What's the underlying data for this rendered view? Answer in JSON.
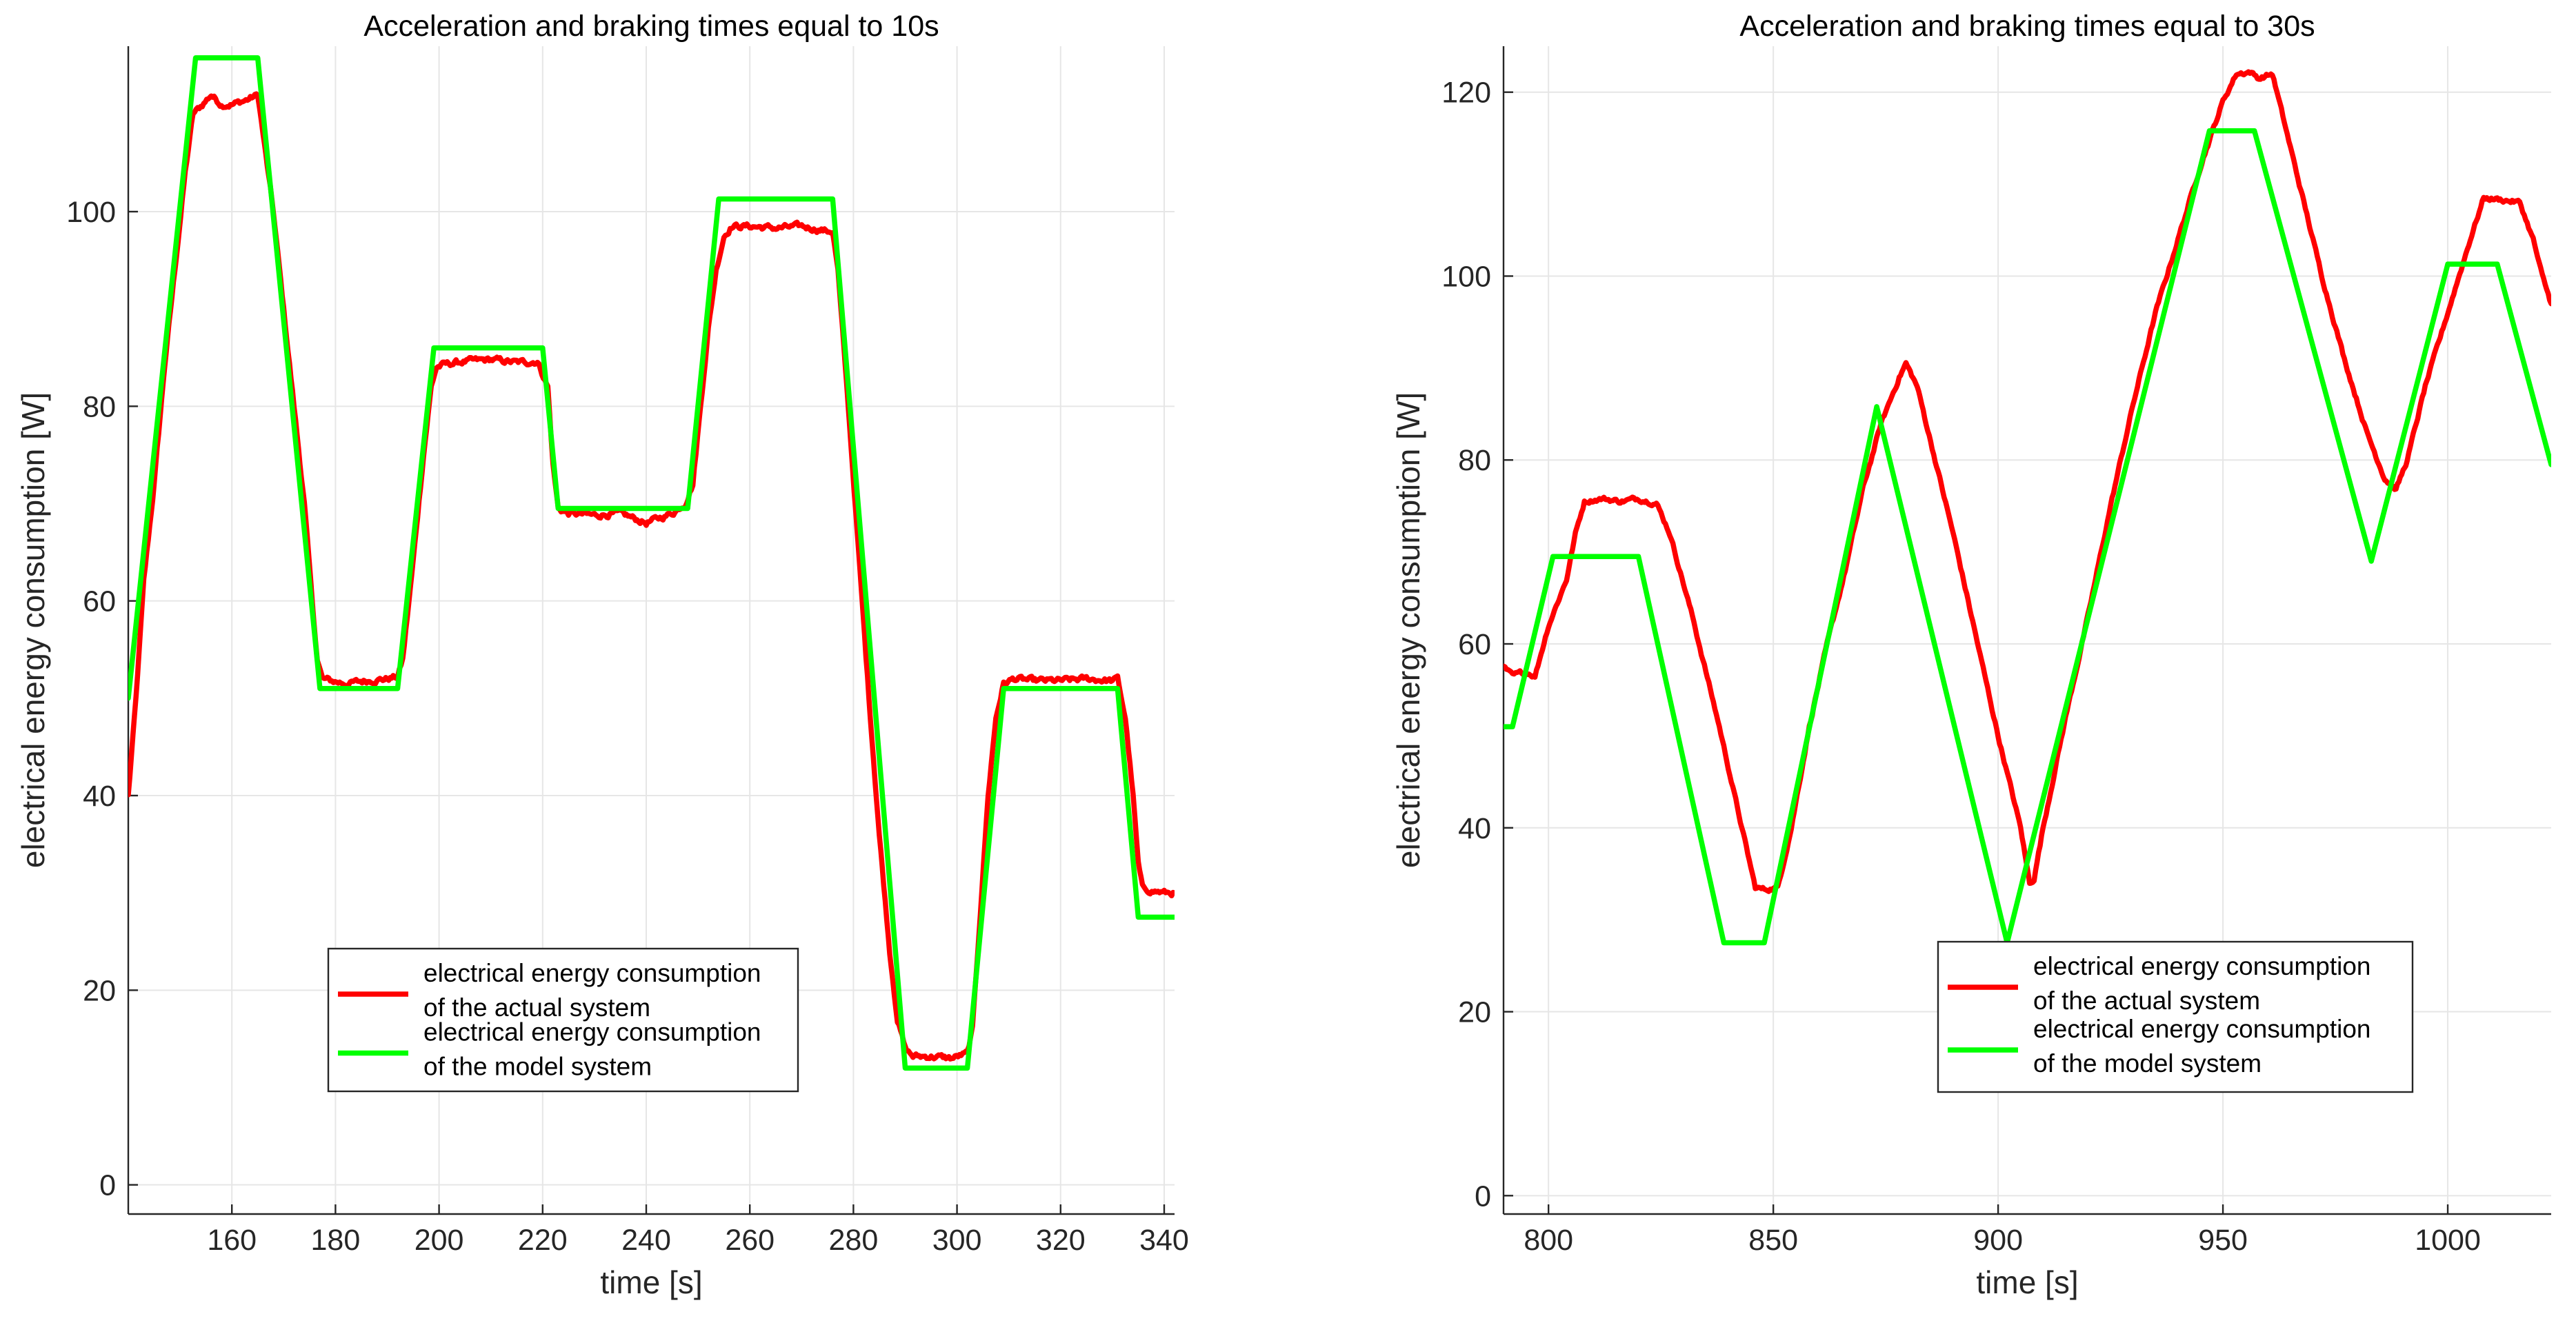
{
  "chart_data": [
    {
      "type": "line",
      "title": "Acceleration and braking times equal to 10s",
      "xlabel": "time [s]",
      "ylabel": "electrical energy consumption [W]",
      "xlim": [
        140,
        342
      ],
      "ylim": [
        -3,
        117
      ],
      "xticks": [
        160,
        180,
        200,
        220,
        240,
        260,
        280,
        300,
        320,
        340
      ],
      "yticks": [
        0,
        20,
        40,
        60,
        80,
        100
      ],
      "grid": true,
      "legend_position": "bottom-center",
      "series": [
        {
          "name": "electrical energy consumption\nof the actual system",
          "color": "#ff0000",
          "noise": 0.6,
          "points": [
            [
              140,
              40
            ],
            [
              141.5,
              50
            ],
            [
              143,
              62
            ],
            [
              145,
              72
            ],
            [
              147,
              84
            ],
            [
              149,
              94
            ],
            [
              151,
              104
            ],
            [
              152.5,
              110
            ],
            [
              154,
              110.8
            ],
            [
              156,
              112
            ],
            [
              158,
              111
            ],
            [
              160,
              111
            ],
            [
              163,
              111.5
            ],
            [
              165,
              112
            ],
            [
              166,
              108
            ],
            [
              168,
              100
            ],
            [
              170,
              90
            ],
            [
              172,
              80
            ],
            [
              174,
              70
            ],
            [
              175.5,
              60
            ],
            [
              176.5,
              54
            ],
            [
              177.5,
              52
            ],
            [
              179,
              51.8
            ],
            [
              182,
              51.5
            ],
            [
              186,
              51.8
            ],
            [
              190,
              52
            ],
            [
              192,
              52.2
            ],
            [
              193,
              54
            ],
            [
              195,
              64
            ],
            [
              197,
              75
            ],
            [
              198.5,
              82
            ],
            [
              199.5,
              84
            ],
            [
              201,
              84.3
            ],
            [
              205,
              84.6
            ],
            [
              210,
              84.8
            ],
            [
              215,
              84.5
            ],
            [
              219,
              84.6
            ],
            [
              221,
              82
            ],
            [
              222,
              74
            ],
            [
              223,
              69.5
            ],
            [
              225,
              69
            ],
            [
              230,
              68.8
            ],
            [
              235,
              69
            ],
            [
              240,
              68
            ],
            [
              245,
              69
            ],
            [
              247.5,
              70
            ],
            [
              249,
              72
            ],
            [
              250.5,
              80
            ],
            [
              252,
              88
            ],
            [
              253.5,
              94
            ],
            [
              255,
              97.5
            ],
            [
              256.5,
              98.5
            ],
            [
              260,
              98.5
            ],
            [
              265,
              98.3
            ],
            [
              270,
              98.5
            ],
            [
              275,
              98
            ],
            [
              276,
              98
            ],
            [
              277,
              94
            ],
            [
              279,
              80
            ],
            [
              281,
              65
            ],
            [
              283,
              50
            ],
            [
              285,
              36
            ],
            [
              287,
              24
            ],
            [
              288.5,
              17
            ],
            [
              290,
              14
            ],
            [
              291.5,
              13.2
            ],
            [
              295,
              13.2
            ],
            [
              299,
              13
            ],
            [
              302,
              13.5
            ],
            [
              303,
              16
            ],
            [
              304.5,
              28
            ],
            [
              306,
              40
            ],
            [
              307.5,
              48
            ],
            [
              309,
              51.5
            ],
            [
              311,
              52
            ],
            [
              315,
              51.8
            ],
            [
              320,
              51.8
            ],
            [
              325,
              52
            ],
            [
              330,
              51.8
            ],
            [
              331,
              52
            ],
            [
              332.5,
              48
            ],
            [
              334,
              40
            ],
            [
              335,
              33
            ],
            [
              335.8,
              30.5
            ],
            [
              337,
              30.3
            ],
            [
              340,
              30
            ],
            [
              342,
              30
            ]
          ]
        },
        {
          "name": "electrical energy consumption\nof the model system",
          "color": "#00ff00",
          "noise": 0,
          "points": [
            [
              140,
              50
            ],
            [
              153,
              115.8
            ],
            [
              165,
              115.8
            ],
            [
              177,
              51
            ],
            [
              192,
              51
            ],
            [
              199,
              86
            ],
            [
              220,
              86
            ],
            [
              223,
              69.5
            ],
            [
              248,
              69.5
            ],
            [
              254,
              101.3
            ],
            [
              276,
              101.3
            ],
            [
              290,
              12
            ],
            [
              302,
              12
            ],
            [
              309,
              51
            ],
            [
              331,
              51
            ],
            [
              335,
              27.5
            ],
            [
              342,
              27.5
            ]
          ]
        }
      ]
    },
    {
      "type": "line",
      "title": "Acceleration and braking times equal to 30s",
      "xlabel": "time [s]",
      "ylabel": "electrical energy consumption [W]",
      "xlim": [
        790,
        1023
      ],
      "ylim": [
        -2,
        125
      ],
      "xticks": [
        800,
        850,
        900,
        950,
        1000
      ],
      "yticks": [
        0,
        20,
        40,
        60,
        80,
        100,
        120
      ],
      "grid": true,
      "legend_position": "bottom-center",
      "series": [
        {
          "name": "electrical energy consumption\nof the actual system",
          "color": "#ff0000",
          "noise": 0.5,
          "points": [
            [
              790,
              57.5
            ],
            [
              792,
              56.5
            ],
            [
              795,
              57
            ],
            [
              797,
              56.5
            ],
            [
              800,
              62
            ],
            [
              804,
              67
            ],
            [
              806,
              72
            ],
            [
              808,
              75.5
            ],
            [
              812,
              75.8
            ],
            [
              816,
              75.5
            ],
            [
              820,
              75.8
            ],
            [
              824,
              75.3
            ],
            [
              827,
              72
            ],
            [
              832,
              63
            ],
            [
              838,
              51
            ],
            [
              843,
              40
            ],
            [
              846,
              33.5
            ],
            [
              848,
              33.3
            ],
            [
              851,
              33.5
            ],
            [
              854,
              40
            ],
            [
              858,
              51
            ],
            [
              862,
              60
            ],
            [
              866,
              68
            ],
            [
              870,
              77
            ],
            [
              874,
              84
            ],
            [
              878,
              89
            ],
            [
              879.5,
              90.5
            ],
            [
              882,
              88
            ],
            [
              885,
              82
            ],
            [
              890,
              72
            ],
            [
              895,
              61
            ],
            [
              900,
              50
            ],
            [
              905,
              40
            ],
            [
              907,
              34
            ],
            [
              908,
              34.5
            ],
            [
              910,
              40
            ],
            [
              915,
              52
            ],
            [
              920,
              63
            ],
            [
              925,
              75
            ],
            [
              930,
              86
            ],
            [
              935,
              96
            ],
            [
              940,
              104
            ],
            [
              945,
              112
            ],
            [
              950,
              119
            ],
            [
              953,
              122
            ],
            [
              956,
              122.2
            ],
            [
              958,
              121.5
            ],
            [
              961,
              122
            ],
            [
              963,
              118
            ],
            [
              967,
              110
            ],
            [
              972,
              100
            ],
            [
              977,
              91
            ],
            [
              982,
              83
            ],
            [
              986,
              78
            ],
            [
              988.5,
              76.8
            ],
            [
              991,
              80
            ],
            [
              995,
              88
            ],
            [
              1000,
              96
            ],
            [
              1005,
              104
            ],
            [
              1008,
              108.5
            ],
            [
              1012,
              108.3
            ],
            [
              1016,
              108
            ],
            [
              1019,
              104
            ],
            [
              1021,
              100
            ],
            [
              1023,
              97
            ]
          ]
        },
        {
          "name": "electrical energy consumption\nof the model system",
          "color": "#00ff00",
          "noise": 0,
          "points": [
            [
              790,
              51
            ],
            [
              792,
              51
            ],
            [
              801,
              69.5
            ],
            [
              820,
              69.5
            ],
            [
              839,
              27.5
            ],
            [
              848,
              27.5
            ],
            [
              873,
              85.8
            ],
            [
              902,
              27.5
            ],
            [
              947,
              115.8
            ],
            [
              957,
              115.8
            ],
            [
              983,
              69
            ],
            [
              1000,
              101.3
            ],
            [
              1011,
              101.3
            ],
            [
              1023,
              79.5
            ]
          ]
        }
      ]
    }
  ]
}
